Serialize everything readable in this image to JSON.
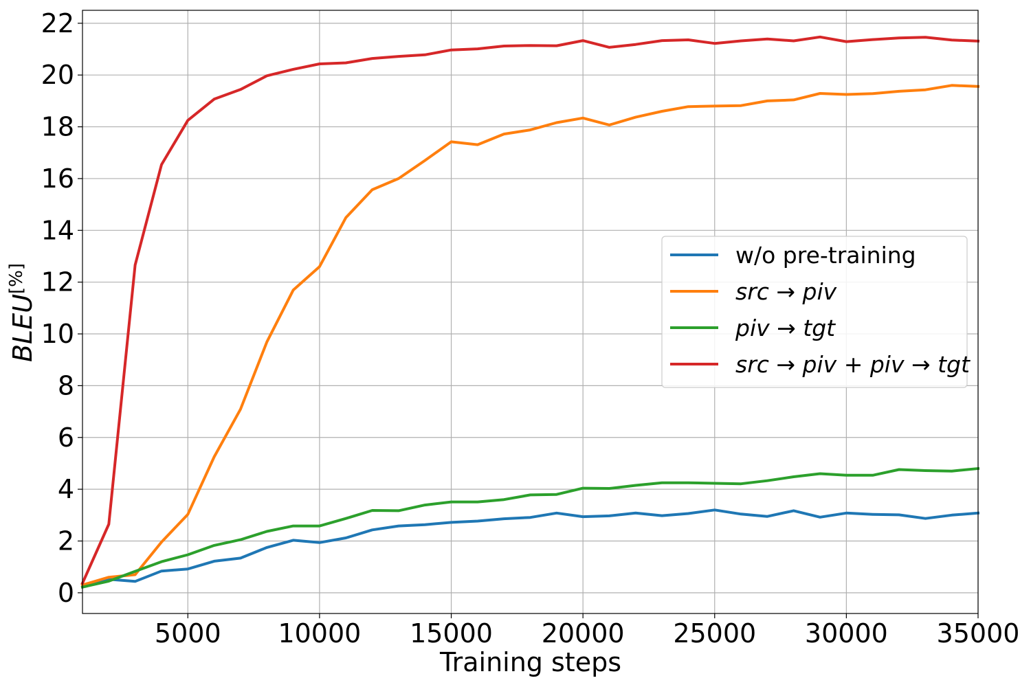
{
  "chart_data": {
    "type": "line",
    "xlabel": "Training steps",
    "ylabel": {
      "main": "BLEU",
      "unit": "[%]"
    },
    "xlim": [
      1000,
      35000
    ],
    "ylim": [
      -0.8,
      22.5
    ],
    "xticks": [
      5000,
      10000,
      15000,
      20000,
      25000,
      30000,
      35000
    ],
    "yticks": [
      0,
      2,
      4,
      6,
      8,
      10,
      12,
      14,
      16,
      18,
      20,
      22
    ],
    "grid": true,
    "legend_position": "center-right",
    "x": [
      1000,
      2000,
      3000,
      4000,
      5000,
      6000,
      7000,
      8000,
      9000,
      10000,
      11000,
      12000,
      13000,
      14000,
      15000,
      16000,
      17000,
      18000,
      19000,
      20000,
      21000,
      22000,
      23000,
      24000,
      25000,
      26000,
      27000,
      28000,
      29000,
      30000,
      31000,
      32000,
      33000,
      34000,
      35000
    ],
    "series": [
      {
        "name": "w/o pre-training",
        "color": "#1f77b4",
        "values": [
          0.3,
          0.52,
          0.44,
          0.84,
          0.92,
          1.22,
          1.34,
          1.75,
          2.03,
          1.94,
          2.12,
          2.43,
          2.58,
          2.63,
          2.72,
          2.77,
          2.86,
          2.91,
          3.08,
          2.94,
          2.97,
          3.08,
          2.98,
          3.06,
          3.2,
          3.04,
          2.95,
          3.17,
          2.92,
          3.08,
          3.03,
          3.01,
          2.87,
          3.0,
          3.08
        ]
      },
      {
        "name": "src→piv",
        "color": "#ff7f0e",
        "values": [
          0.3,
          0.6,
          0.7,
          1.96,
          3.03,
          5.25,
          7.09,
          9.69,
          11.69,
          12.6,
          14.49,
          15.57,
          16.0,
          16.7,
          17.42,
          17.31,
          17.72,
          17.88,
          18.16,
          18.34,
          18.07,
          18.37,
          18.6,
          18.78,
          18.8,
          18.82,
          19.0,
          19.04,
          19.29,
          19.25,
          19.28,
          19.37,
          19.43,
          19.6,
          19.56
        ]
      },
      {
        "name": "piv→tgt",
        "color": "#2ca02c",
        "values": [
          0.22,
          0.45,
          0.83,
          1.2,
          1.47,
          1.83,
          2.05,
          2.37,
          2.58,
          2.58,
          2.87,
          3.18,
          3.17,
          3.39,
          3.51,
          3.51,
          3.6,
          3.78,
          3.8,
          4.04,
          4.03,
          4.15,
          4.25,
          4.25,
          4.23,
          4.21,
          4.33,
          4.48,
          4.6,
          4.54,
          4.54,
          4.76,
          4.72,
          4.7,
          4.8
        ]
      },
      {
        "name": "src→piv + piv→tgt",
        "color": "#d62728",
        "values": [
          0.37,
          2.65,
          12.66,
          16.54,
          18.25,
          19.07,
          19.44,
          19.97,
          20.22,
          20.43,
          20.47,
          20.64,
          20.72,
          20.78,
          20.97,
          21.01,
          21.12,
          21.14,
          21.13,
          21.33,
          21.07,
          21.18,
          21.33,
          21.36,
          21.22,
          21.32,
          21.39,
          21.32,
          21.47,
          21.29,
          21.37,
          21.43,
          21.46,
          21.35,
          21.31
        ]
      }
    ],
    "legend_entries": [
      {
        "parts": [
          {
            "t": "w/o pre-training",
            "style": "normal"
          }
        ]
      },
      {
        "parts": [
          {
            "t": "src",
            "style": "italic"
          },
          {
            "t": " → ",
            "style": "normal"
          },
          {
            "t": "piv",
            "style": "italic"
          }
        ]
      },
      {
        "parts": [
          {
            "t": "piv",
            "style": "italic"
          },
          {
            "t": " → ",
            "style": "normal"
          },
          {
            "t": "tgt",
            "style": "italic"
          }
        ]
      },
      {
        "parts": [
          {
            "t": "src",
            "style": "italic"
          },
          {
            "t": " → ",
            "style": "normal"
          },
          {
            "t": "piv",
            "style": "italic"
          },
          {
            "t": " + ",
            "style": "normal"
          },
          {
            "t": "piv",
            "style": "italic"
          },
          {
            "t": " → ",
            "style": "normal"
          },
          {
            "t": "tgt",
            "style": "italic"
          }
        ]
      }
    ]
  }
}
